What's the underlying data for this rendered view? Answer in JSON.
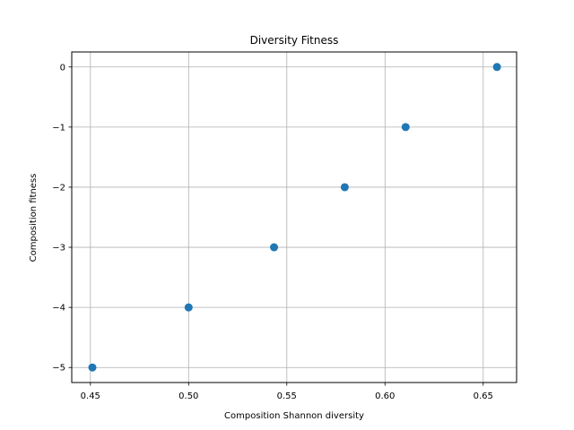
{
  "chart_data": {
    "type": "scatter",
    "title": "Diversity Fitness",
    "xlabel": "Composition Shannon diversity",
    "ylabel": "Composition fitness",
    "xlim": [
      0.4405,
      0.667
    ],
    "ylim": [
      -5.25,
      0.25
    ],
    "xticks": [
      0.45,
      0.5,
      0.55,
      0.6,
      0.65
    ],
    "xtick_labels": [
      "0.45",
      "0.50",
      "0.55",
      "0.60",
      "0.65"
    ],
    "yticks": [
      0,
      -1,
      -2,
      -3,
      -4,
      -5
    ],
    "ytick_labels": [
      "0",
      "−1",
      "−2",
      "−3",
      "−4",
      "−5"
    ],
    "grid": true,
    "marker_color": "#1f77b4",
    "series": [
      {
        "x": [
          0.451,
          0.5,
          0.5435,
          0.5795,
          0.6105,
          0.657
        ],
        "y": [
          -5,
          -4,
          -3,
          -2,
          -1,
          0
        ]
      }
    ]
  }
}
